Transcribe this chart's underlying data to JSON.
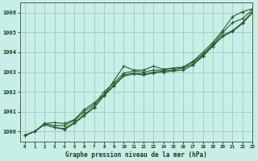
{
  "title": "Graphe pression niveau de la mer (hPa)",
  "bg_color": "#c8eee8",
  "grid_color": "#a8cec8",
  "line_color": "#2d5a2d",
  "xlim": [
    -0.5,
    23
  ],
  "ylim": [
    999.5,
    1006.5
  ],
  "yticks": [
    1000,
    1001,
    1002,
    1003,
    1004,
    1005,
    1006
  ],
  "xticks": [
    0,
    1,
    2,
    3,
    4,
    5,
    6,
    7,
    8,
    9,
    10,
    11,
    12,
    13,
    14,
    15,
    16,
    17,
    18,
    19,
    20,
    21,
    22,
    23
  ],
  "series": [
    [
      999.8,
      1000.0,
      1000.4,
      1000.45,
      1000.4,
      1000.6,
      1001.1,
      1001.45,
      1001.85,
      1002.55,
      1003.3,
      1003.1,
      1003.1,
      1003.3,
      1003.15,
      1003.2,
      1003.25,
      1003.55,
      1004.0,
      1004.5,
      1005.1,
      1005.8,
      1006.05,
      1006.2
    ],
    [
      999.8,
      1000.0,
      1000.4,
      1000.3,
      1000.3,
      1000.55,
      1001.0,
      1001.35,
      1002.0,
      1002.45,
      1002.95,
      1003.05,
      1003.0,
      1003.1,
      1003.1,
      1003.2,
      1003.25,
      1003.5,
      1003.9,
      1004.4,
      1005.0,
      1005.5,
      1005.7,
      1006.15
    ],
    [
      999.8,
      1000.0,
      1000.35,
      1000.2,
      1000.15,
      1000.45,
      1000.85,
      1001.25,
      1001.85,
      1002.35,
      1002.85,
      1002.95,
      1002.9,
      1003.0,
      1003.05,
      1003.1,
      1003.2,
      1003.4,
      1003.85,
      1004.35,
      1004.85,
      1005.1,
      1005.5,
      1006.05
    ],
    [
      999.8,
      1000.0,
      1000.35,
      1000.2,
      1000.1,
      1000.4,
      1000.8,
      1001.2,
      1001.8,
      1002.3,
      1002.8,
      1002.9,
      1002.85,
      1002.95,
      1003.0,
      1003.05,
      1003.1,
      1003.35,
      1003.8,
      1004.3,
      1004.8,
      1005.05,
      1005.45,
      1006.0
    ]
  ]
}
